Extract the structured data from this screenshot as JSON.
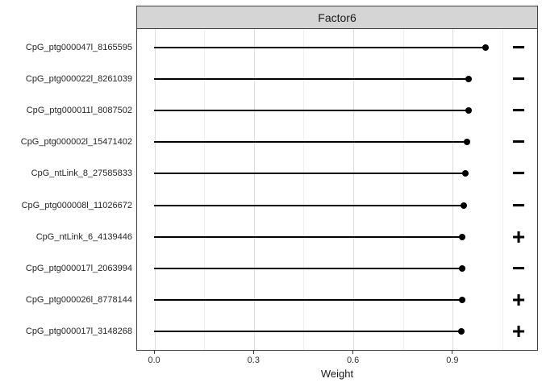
{
  "facet": {
    "title": "Factor6"
  },
  "axes": {
    "x_label": "Weight",
    "x_ticks": [
      {
        "value": 0.0,
        "label": "0.0"
      },
      {
        "value": 0.3,
        "label": "0.3"
      },
      {
        "value": 0.6,
        "label": "0.6"
      },
      {
        "value": 0.9,
        "label": "0.9"
      }
    ],
    "x_minor_values": [
      0.15,
      0.45,
      0.75,
      1.05
    ]
  },
  "chart_data": {
    "type": "bar",
    "variant": "horizontal-lollipop",
    "title": "Factor6",
    "xlabel": "Weight",
    "ylabel": "",
    "xlim": [
      -0.054,
      1.158
    ],
    "grid": "vertical-only",
    "legend": "none",
    "categories": [
      "CpG_ptg000047l_8165595",
      "CpG_ptg000022l_8261039",
      "CpG_ptg000011l_8087502",
      "CpG_ptg000002l_15471402",
      "CpG_ntLink_8_27585833",
      "CpG_ptg000008l_11026672",
      "CpG_ntLink_6_4139446",
      "CpG_ptg000017l_2063994",
      "CpG_ptg000026l_8778144",
      "CpG_ptg000017l_3148268"
    ],
    "values": [
      1.0,
      0.95,
      0.95,
      0.945,
      0.94,
      0.935,
      0.93,
      0.93,
      0.93,
      0.928
    ],
    "signs": [
      "-",
      "-",
      "-",
      "-",
      "-",
      "-",
      "+",
      "-",
      "+",
      "+"
    ],
    "sign_x": 1.1
  },
  "colors": {
    "segment": "#000000",
    "dot": "#000000",
    "strip_fill": "#d5d5d5",
    "panel_border": "#404040",
    "grid_major": "#dedede",
    "grid_minor": "#f0f0f0",
    "label_text": "#262626",
    "tick_text": "#333333"
  }
}
